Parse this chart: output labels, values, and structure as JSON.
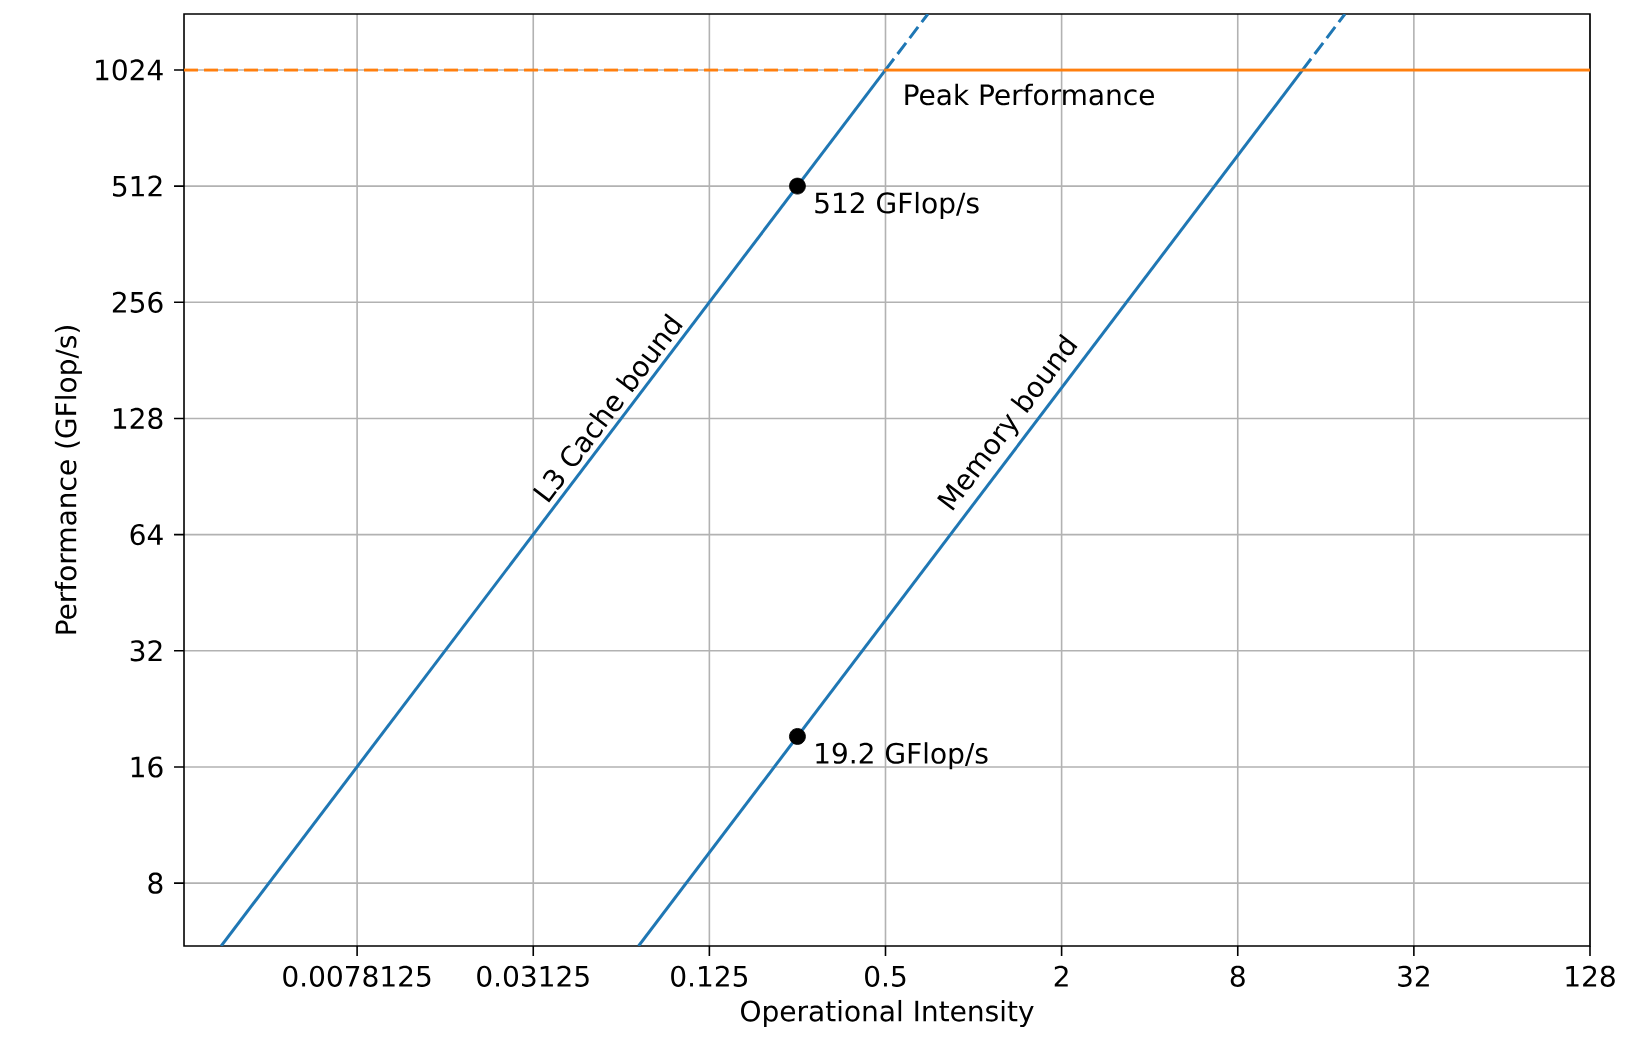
{
  "chart_data": {
    "type": "line",
    "xlabel": "Operational Intensity",
    "ylabel": "Performance (GFlop/s)",
    "log": "xy",
    "grid": true,
    "xlim": [
      0.002,
      128
    ],
    "xticks": [
      0.0078125,
      0.03125,
      0.125,
      0.5,
      2,
      8,
      32,
      128
    ],
    "ylim": [
      5.5,
      1430
    ],
    "yticks": [
      8,
      16,
      32,
      64,
      128,
      256,
      512,
      1024
    ],
    "series": [
      {
        "color": "#1f77b4",
        "line_style": "solid",
        "x": [
          0.00268,
          0.5
        ],
        "values": [
          5.5,
          1024
        ]
      },
      {
        "color": "#1f77b4",
        "line_style": "dashed",
        "x": [
          0.5,
          0.698
        ],
        "values": [
          1024,
          1430
        ]
      },
      {
        "color": "#1f77b4",
        "line_style": "solid",
        "x": [
          0.0716,
          13.33
        ],
        "values": [
          5.5,
          1024
        ]
      },
      {
        "color": "#1f77b4",
        "line_style": "dashed",
        "x": [
          13.33,
          18.6
        ],
        "values": [
          1024,
          1430
        ]
      },
      {
        "color": "#ff7f0e",
        "line_style": "dashed",
        "x": [
          0.002,
          0.5
        ],
        "values": [
          1024,
          1024
        ]
      },
      {
        "color": "#ff7f0e",
        "line_style": "solid",
        "x": [
          0.5,
          128
        ],
        "values": [
          1024,
          1024
        ]
      },
      {
        "type": "scatter",
        "marker": "circle",
        "color": "#000000",
        "x": [
          0.25,
          0.25
        ],
        "values": [
          512,
          19.2
        ]
      }
    ],
    "annotations": [
      {
        "text": "L3 Cache bound",
        "x": 0.0625,
        "y": 128
      },
      {
        "text": "Memory bound",
        "x": 1.5,
        "y": 115.2
      },
      {
        "text": "Peak Performance",
        "x": 0.53,
        "y": 1024
      },
      {
        "text": "512 GFlop/s",
        "x": 0.25,
        "y": 512
      },
      {
        "text": "19.2 GFlop/s",
        "x": 0.25,
        "y": 19.2
      }
    ]
  }
}
